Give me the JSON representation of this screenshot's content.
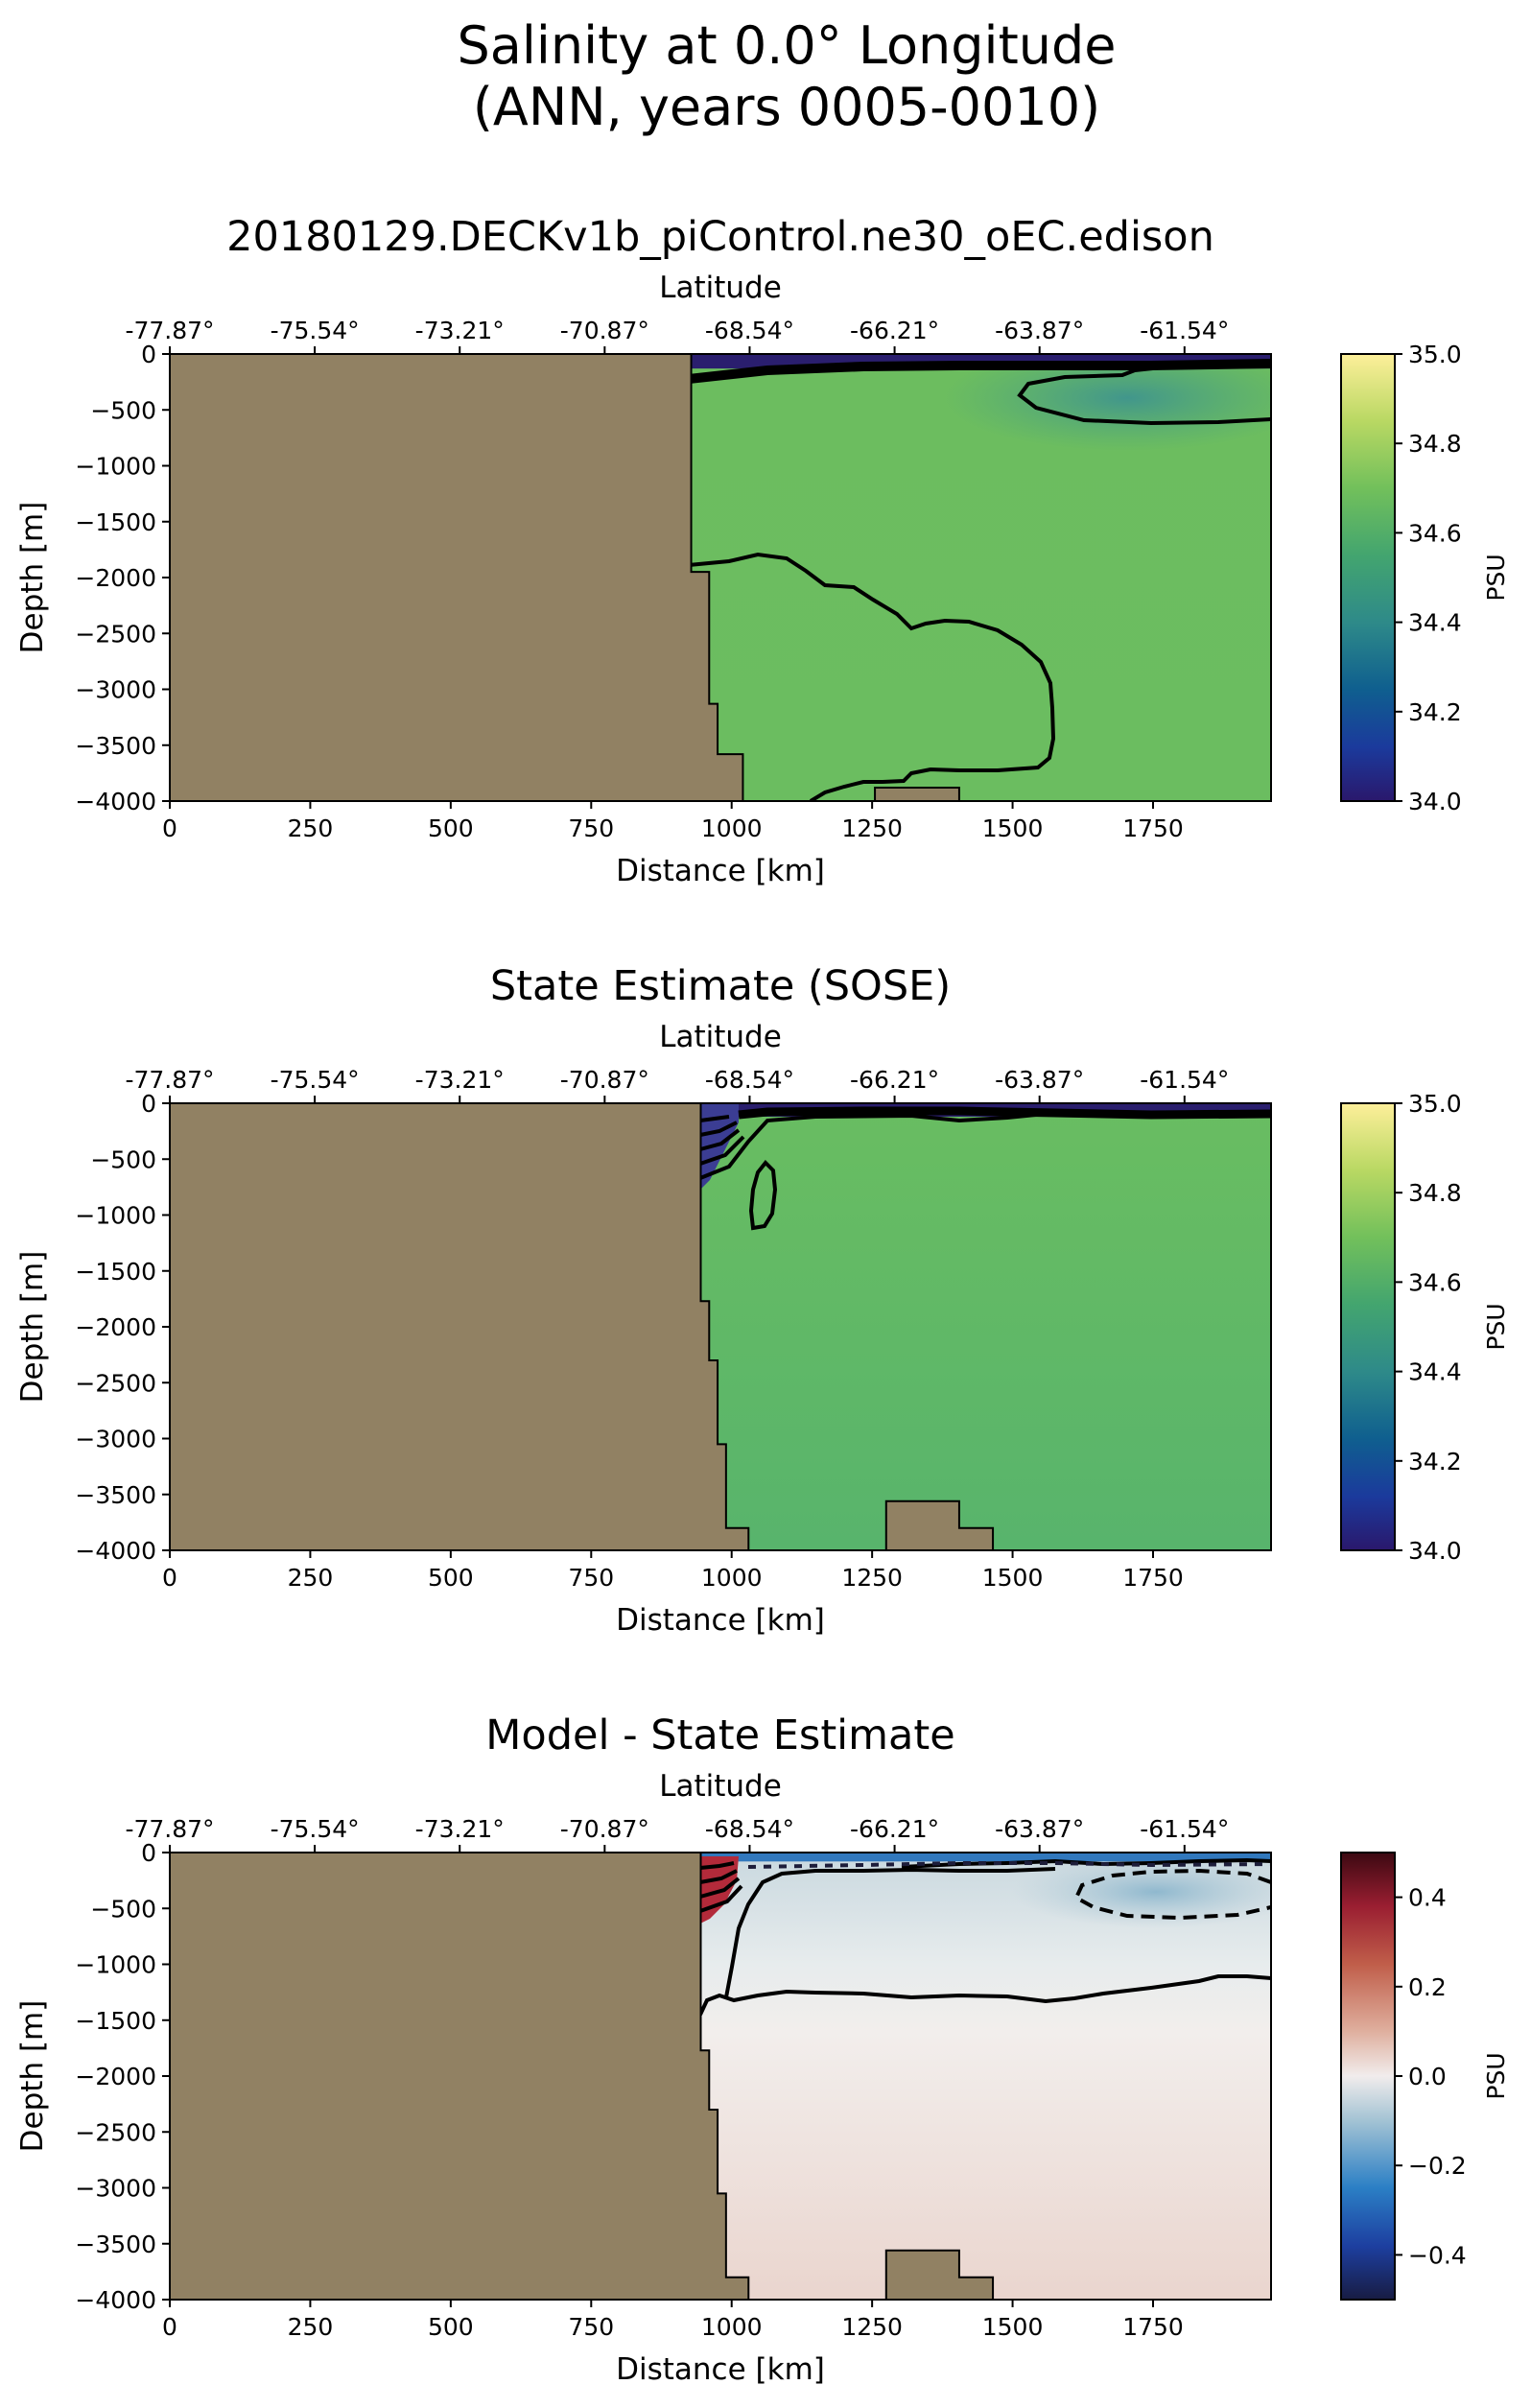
{
  "figure": {
    "suptitle_line1": "Salinity at 0.0° Longitude",
    "suptitle_line2": "(ANN, years 0005-0010)"
  },
  "chart_data": [
    {
      "type": "heatmap",
      "title": "20180129.DECKv1b_piControl.ne30_oEC.edison",
      "xlabel": "Distance [km]",
      "ylabel": "Depth [m]",
      "top_xlabel": "Latitude",
      "xlim": [
        0,
        1960
      ],
      "ylim": [
        -4000,
        0
      ],
      "xticks": [
        0,
        250,
        500,
        750,
        1000,
        1250,
        1500,
        1750
      ],
      "yticks": [
        0,
        -500,
        -1000,
        -1500,
        -2000,
        -2500,
        -3000,
        -3500,
        -4000
      ],
      "xtick_labels": [
        "0",
        "250",
        "500",
        "750",
        "1000",
        "1250",
        "1500",
        "1750"
      ],
      "ytick_labels": [
        "0",
        "−500",
        "−1000",
        "−1500",
        "−2000",
        "−2500",
        "−3000",
        "−3500",
        "−4000"
      ],
      "top_ticks": [
        0,
        258,
        516,
        774,
        1032,
        1290,
        1548,
        1806
      ],
      "top_tick_labels": [
        "-77.87°",
        "-75.54°",
        "-73.21°",
        "-70.87°",
        "-68.54°",
        "-66.21°",
        "-63.87°",
        "-61.54°"
      ],
      "colorbar": {
        "label": "PSU",
        "range": [
          34.0,
          35.0
        ],
        "ticks": [
          34.0,
          34.2,
          34.4,
          34.6,
          34.8,
          35.0
        ],
        "tick_labels": [
          "34.0",
          "34.2",
          "34.4",
          "34.6",
          "34.8",
          "35.0"
        ],
        "colormap": "haline"
      },
      "land_color": "#918163",
      "land_profile": [
        [
          0,
          0
        ],
        [
          928,
          0
        ],
        [
          928,
          -1950
        ],
        [
          960,
          -1950
        ],
        [
          960,
          -3130
        ],
        [
          975,
          -3130
        ],
        [
          975,
          -3580
        ],
        [
          1020,
          -3580
        ],
        [
          1020,
          -4000
        ]
      ],
      "seamount": [
        [
          1255,
          -4000
        ],
        [
          1255,
          -3880
        ],
        [
          1405,
          -3880
        ],
        [
          1405,
          -4000
        ]
      ],
      "surface_layer": {
        "value": 34.1,
        "thickness_m": 130
      },
      "field_value": 34.62
    },
    {
      "type": "heatmap",
      "title": "State Estimate (SOSE)",
      "xlabel": "Distance [km]",
      "ylabel": "Depth [m]",
      "top_xlabel": "Latitude",
      "xlim": [
        0,
        1960
      ],
      "ylim": [
        -4000,
        0
      ],
      "xticks": [
        0,
        250,
        500,
        750,
        1000,
        1250,
        1500,
        1750
      ],
      "yticks": [
        0,
        -500,
        -1000,
        -1500,
        -2000,
        -2500,
        -3000,
        -3500,
        -4000
      ],
      "xtick_labels": [
        "0",
        "250",
        "500",
        "750",
        "1000",
        "1250",
        "1500",
        "1750"
      ],
      "ytick_labels": [
        "0",
        "−500",
        "−1000",
        "−1500",
        "−2000",
        "−2500",
        "−3000",
        "−3500",
        "−4000"
      ],
      "top_ticks": [
        0,
        258,
        516,
        774,
        1032,
        1290,
        1548,
        1806
      ],
      "top_tick_labels": [
        "-77.87°",
        "-75.54°",
        "-73.21°",
        "-70.87°",
        "-68.54°",
        "-66.21°",
        "-63.87°",
        "-61.54°"
      ],
      "colorbar": {
        "label": "PSU",
        "range": [
          34.0,
          35.0
        ],
        "ticks": [
          34.0,
          34.2,
          34.4,
          34.6,
          34.8,
          35.0
        ],
        "tick_labels": [
          "34.0",
          "34.2",
          "34.4",
          "34.6",
          "34.8",
          "35.0"
        ],
        "colormap": "haline"
      },
      "land_color": "#918163",
      "land_profile": [
        [
          0,
          0
        ],
        [
          945,
          0
        ],
        [
          945,
          -1770
        ],
        [
          960,
          -1770
        ],
        [
          960,
          -2300
        ],
        [
          975,
          -2300
        ],
        [
          975,
          -3050
        ],
        [
          990,
          -3050
        ],
        [
          990,
          -3800
        ],
        [
          1030,
          -3800
        ],
        [
          1030,
          -4000
        ]
      ],
      "seamount": [
        [
          1275,
          -4000
        ],
        [
          1275,
          -3560
        ],
        [
          1405,
          -3560
        ],
        [
          1405,
          -3800
        ],
        [
          1465,
          -3800
        ],
        [
          1465,
          -4000
        ]
      ],
      "surface_layer": {
        "value": 34.05,
        "thickness_m": 120
      },
      "field_value": 34.63
    },
    {
      "type": "heatmap",
      "title": "Model - State Estimate",
      "xlabel": "Distance [km]",
      "ylabel": "Depth [m]",
      "top_xlabel": "Latitude",
      "xlim": [
        0,
        1960
      ],
      "ylim": [
        -4000,
        0
      ],
      "xticks": [
        0,
        250,
        500,
        750,
        1000,
        1250,
        1500,
        1750
      ],
      "yticks": [
        0,
        -500,
        -1000,
        -1500,
        -2000,
        -2500,
        -3000,
        -3500,
        -4000
      ],
      "xtick_labels": [
        "0",
        "250",
        "500",
        "750",
        "1000",
        "1250",
        "1500",
        "1750"
      ],
      "ytick_labels": [
        "0",
        "−500",
        "−1000",
        "−1500",
        "−2000",
        "−2500",
        "−3000",
        "−3500",
        "−4000"
      ],
      "top_ticks": [
        0,
        258,
        516,
        774,
        1032,
        1290,
        1548,
        1806
      ],
      "top_tick_labels": [
        "-77.87°",
        "-75.54°",
        "-73.21°",
        "-70.87°",
        "-68.54°",
        "-66.21°",
        "-63.87°",
        "-61.54°"
      ],
      "colorbar": {
        "label": "PSU",
        "range": [
          -0.5,
          0.5
        ],
        "ticks": [
          -0.4,
          -0.2,
          0.0,
          0.2,
          0.4
        ],
        "tick_labels": [
          "−0.4",
          "−0.2",
          "0.0",
          "0.2",
          "0.4"
        ],
        "colormap": "balance"
      },
      "land_color": "#918163",
      "land_profile": [
        [
          0,
          0
        ],
        [
          945,
          0
        ],
        [
          945,
          -1770
        ],
        [
          960,
          -1770
        ],
        [
          960,
          -2300
        ],
        [
          975,
          -2300
        ],
        [
          975,
          -3050
        ],
        [
          990,
          -3050
        ],
        [
          990,
          -3800
        ],
        [
          1030,
          -3800
        ],
        [
          1030,
          -4000
        ]
      ],
      "seamount": [
        [
          1275,
          -4000
        ],
        [
          1275,
          -3560
        ],
        [
          1405,
          -3560
        ],
        [
          1405,
          -3800
        ],
        [
          1465,
          -3800
        ],
        [
          1465,
          -4000
        ]
      ],
      "surface_layer": {
        "value": -0.25,
        "thickness_m": 80
      },
      "field_value": 0.02
    }
  ]
}
